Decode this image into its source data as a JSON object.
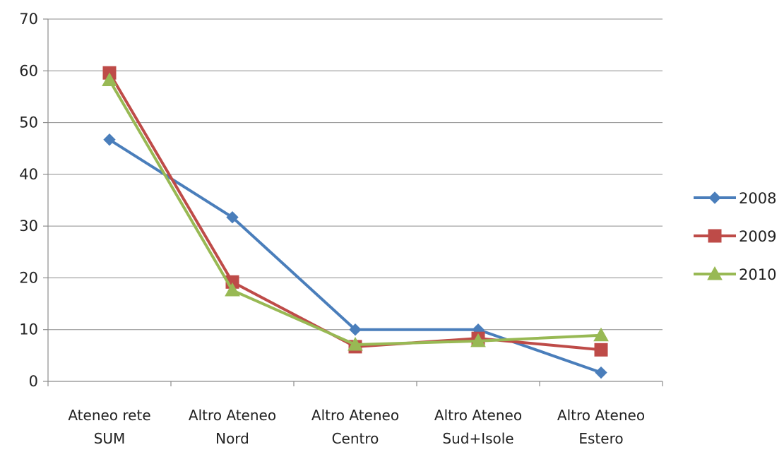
{
  "chart_data": {
    "type": "line",
    "title": "",
    "xlabel": "",
    "ylabel": "",
    "ylim": [
      0,
      70
    ],
    "yticks": [
      0,
      10,
      20,
      30,
      40,
      50,
      60,
      70
    ],
    "grid": true,
    "legend_position": "right",
    "categories": [
      [
        "Ateneo rete",
        "SUM"
      ],
      [
        "Altro Ateneo",
        "Nord"
      ],
      [
        "Altro Ateneo",
        "Centro"
      ],
      [
        "Altro Ateneo",
        "Sud+Isole"
      ],
      [
        "Altro Ateneo",
        "Estero"
      ]
    ],
    "series": [
      {
        "name": "2008",
        "color": "#4a7ebb",
        "marker": "diamond",
        "values": [
          46.7,
          31.7,
          10.0,
          10.0,
          1.7
        ]
      },
      {
        "name": "2009",
        "color": "#be4b48",
        "marker": "square",
        "values": [
          59.6,
          19.2,
          6.7,
          8.3,
          6.1
        ]
      },
      {
        "name": "2010",
        "color": "#98b954",
        "marker": "triangle",
        "values": [
          58.2,
          17.6,
          7.1,
          7.8,
          8.9
        ]
      }
    ]
  }
}
